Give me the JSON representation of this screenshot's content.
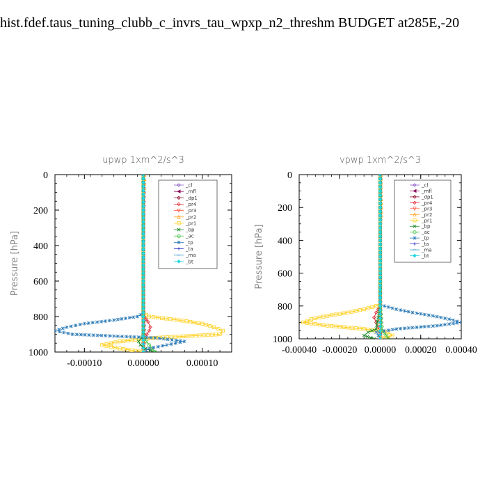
{
  "title": "hist.fdef.taus_tuning_clubb_c_invrs_tau_wpxp_n2_threshm  BUDGET at285E,-20",
  "chart_data": [
    {
      "type": "line",
      "title": "upwp   1xm^2/s^3",
      "ylabel": "Pressure  [hPa]",
      "xlabel": "",
      "xlim": [
        -0.00015,
        0.00015
      ],
      "ylim": [
        1000,
        0
      ],
      "xticks": [
        "-0.00010",
        "0.00000",
        "0.00010"
      ],
      "xtick_values": [
        -0.0001,
        0,
        0.0001
      ],
      "yticks": [
        "0",
        "200",
        "400",
        "600",
        "800",
        "1000"
      ],
      "ytick_values": [
        0,
        200,
        400,
        600,
        800,
        1000
      ],
      "legend_position": "top-right",
      "series": [
        {
          "name": "_cl",
          "color": "#8a5cc8",
          "marker": "diamond",
          "y": [
            0,
            100,
            200,
            300,
            400,
            500,
            600,
            700,
            800,
            850,
            900,
            950,
            1000
          ],
          "x": [
            1e-06,
            1.5e-06,
            1e-06,
            5e-07,
            5e-07,
            5e-07,
            5e-07,
            5e-07,
            1e-06,
            2e-06,
            1.5e-06,
            1e-06,
            0
          ]
        },
        {
          "name": "_mfl",
          "color": "#8b0a5a",
          "marker": "triangle-left",
          "y": [
            0,
            200,
            400,
            600,
            800,
            1000
          ],
          "x": [
            0,
            0,
            0,
            0,
            0,
            0
          ]
        },
        {
          "name": "_dp1",
          "color": "#8b0a2a",
          "marker": "diamond",
          "y": [
            0,
            200,
            400,
            600,
            800,
            1000
          ],
          "x": [
            0,
            0,
            0,
            0,
            0,
            0
          ]
        },
        {
          "name": "_pr4",
          "color": "#e0303a",
          "marker": "diamond",
          "y": [
            0,
            200,
            400,
            600,
            750,
            800,
            830,
            860,
            880,
            900,
            920,
            950,
            980,
            1000
          ],
          "x": [
            0,
            0,
            0,
            0,
            0,
            2e-06,
            8e-06,
            1.2e-05,
            1e-05,
            6e-06,
            3e-06,
            1e-06,
            0,
            0
          ]
        },
        {
          "name": "_pr3",
          "color": "#ff5a4a",
          "marker": "triangle-down",
          "y": [
            0,
            200,
            400,
            600,
            800,
            1000
          ],
          "x": [
            0,
            0,
            0,
            0,
            0,
            0
          ]
        },
        {
          "name": "_pr2",
          "color": "#ffa020",
          "marker": "triangle-up",
          "y": [
            0,
            100,
            200,
            300,
            400,
            600,
            800,
            1000
          ],
          "x": [
            2e-06,
            1e-06,
            0,
            0,
            0,
            0,
            0,
            0
          ]
        },
        {
          "name": "_pr1",
          "color": "#ffd020",
          "marker": "square",
          "y": [
            0,
            200,
            400,
            600,
            780,
            800,
            820,
            840,
            860,
            880,
            900,
            920,
            940,
            960,
            980,
            1000
          ],
          "x": [
            0,
            0,
            0,
            0,
            0,
            1e-05,
            6e-05,
            0.0001,
            0.00012,
            0.000135,
            0.00013,
            2e-05,
            -4e-05,
            -7e-05,
            -4e-05,
            0
          ]
        },
        {
          "name": "_bp",
          "color": "#1f8a2a",
          "marker": "x",
          "y": [
            0,
            200,
            400,
            600,
            800,
            900,
            920,
            940,
            960,
            980,
            1000
          ],
          "x": [
            0,
            0,
            0,
            0,
            0,
            0,
            -3e-06,
            -8e-06,
            -5e-06,
            4e-06,
            2e-05
          ]
        },
        {
          "name": "_ac",
          "color": "#40c040",
          "marker": "circle",
          "y": [
            0,
            200,
            400,
            600,
            800,
            900,
            940,
            960,
            980,
            1000
          ],
          "x": [
            0,
            0,
            0,
            0,
            0,
            0,
            5e-06,
            1e-05,
            1.5e-05,
            2e-05
          ]
        },
        {
          "name": "_tp",
          "color": "#2a7ab8",
          "marker": "star",
          "y": [
            0,
            200,
            400,
            600,
            780,
            800,
            820,
            840,
            860,
            880,
            900,
            920,
            940,
            960,
            980,
            1000
          ],
          "x": [
            0,
            0,
            0,
            0,
            0,
            -1e-05,
            -5e-05,
            -0.0001,
            -0.00013,
            -0.00015,
            -0.00012,
            2e-05,
            7e-05,
            4e-05,
            1e-05,
            0
          ]
        },
        {
          "name": "_ta",
          "color": "#3a3ad0",
          "marker": "plus",
          "y": [
            0,
            200,
            400,
            600,
            800,
            1000
          ],
          "x": [
            0,
            0,
            0,
            0,
            0,
            0
          ]
        },
        {
          "name": "_ma",
          "color": "#2a90c0",
          "marker": "dash",
          "y": [
            0,
            200,
            400,
            600,
            800,
            1000
          ],
          "x": [
            0,
            0,
            0,
            0,
            0,
            0
          ]
        },
        {
          "name": "_bt",
          "color": "#20d8e0",
          "marker": "diamond-filled",
          "y": [
            0,
            200,
            400,
            600,
            800,
            1000
          ],
          "x": [
            0,
            0,
            0,
            0,
            0,
            0
          ]
        }
      ]
    },
    {
      "type": "line",
      "title": "vpwp   1xm^2/s^3",
      "ylabel": "Pressure  [hPa]",
      "xlabel": "",
      "xlim": [
        -0.0004,
        0.0004
      ],
      "ylim": [
        1000,
        0
      ],
      "xticks": [
        "-0.00040",
        "-0.00020",
        "0.00000",
        "0.00020",
        "0.00040"
      ],
      "xtick_values": [
        -0.0004,
        -0.0002,
        0,
        0.0002,
        0.0004
      ],
      "yticks": [
        "0",
        "200",
        "400",
        "600",
        "800",
        "1000"
      ],
      "ytick_values": [
        0,
        200,
        400,
        600,
        800,
        1000
      ],
      "legend_position": "top-right",
      "series": [
        {
          "name": "_cl",
          "color": "#8a5cc8",
          "marker": "diamond",
          "y": [
            0,
            200,
            400,
            600,
            800,
            900,
            1000
          ],
          "x": [
            3e-06,
            2e-06,
            1e-06,
            1e-06,
            2e-06,
            3e-06,
            0
          ]
        },
        {
          "name": "_mfl",
          "color": "#8b0a5a",
          "marker": "triangle-left",
          "y": [
            0,
            200,
            400,
            600,
            800,
            1000
          ],
          "x": [
            0,
            0,
            0,
            0,
            0,
            0
          ]
        },
        {
          "name": "_dp1",
          "color": "#8b0a2a",
          "marker": "diamond",
          "y": [
            0,
            200,
            400,
            600,
            800,
            1000
          ],
          "x": [
            0,
            0,
            0,
            0,
            0,
            0
          ]
        },
        {
          "name": "_pr4",
          "color": "#e0303a",
          "marker": "diamond",
          "y": [
            0,
            200,
            400,
            600,
            800,
            840,
            870,
            900,
            930,
            960,
            1000
          ],
          "x": [
            0,
            0,
            0,
            0,
            0,
            -2e-05,
            -3e-05,
            -2e-05,
            -1e-05,
            0,
            0
          ]
        },
        {
          "name": "_pr3",
          "color": "#ff5a4a",
          "marker": "triangle-down",
          "y": [
            0,
            200,
            400,
            600,
            800,
            1000
          ],
          "x": [
            0,
            0,
            0,
            0,
            0,
            0
          ]
        },
        {
          "name": "_pr2",
          "color": "#ffa020",
          "marker": "triangle-up",
          "y": [
            0,
            100,
            200,
            250,
            300,
            400,
            600,
            800,
            1000
          ],
          "x": [
            5e-06,
            3e-06,
            6e-06,
            4e-06,
            0,
            0,
            0,
            0,
            0
          ]
        },
        {
          "name": "_pr1",
          "color": "#ffd020",
          "marker": "square",
          "y": [
            0,
            200,
            400,
            600,
            790,
            800,
            820,
            840,
            860,
            880,
            900,
            920,
            940,
            960,
            980,
            1000
          ],
          "x": [
            0,
            0,
            0,
            0,
            0,
            -2e-05,
            -8e-05,
            -0.00016,
            -0.00026,
            -0.00034,
            -0.00038,
            -0.00026,
            -8e-05,
            4e-05,
            6e-05,
            0
          ]
        },
        {
          "name": "_bp",
          "color": "#1f8a2a",
          "marker": "x",
          "y": [
            0,
            200,
            400,
            600,
            800,
            940,
            960,
            980,
            1000
          ],
          "x": [
            0,
            0,
            0,
            0,
            0,
            -2e-05,
            -6e-05,
            -8e-05,
            -3e-05
          ]
        },
        {
          "name": "_ac",
          "color": "#40c040",
          "marker": "circle",
          "y": [
            0,
            200,
            400,
            600,
            800,
            950,
            980,
            1000
          ],
          "x": [
            0,
            0,
            0,
            0,
            0,
            1e-05,
            3e-05,
            4e-05
          ]
        },
        {
          "name": "_tp",
          "color": "#2a7ab8",
          "marker": "star",
          "y": [
            0,
            200,
            400,
            600,
            790,
            800,
            820,
            840,
            860,
            880,
            900,
            920,
            940,
            960,
            980,
            1000
          ],
          "x": [
            0,
            0,
            0,
            0,
            0,
            2e-05,
            8e-05,
            0.00016,
            0.00026,
            0.00034,
            0.0004,
            0.00028,
            8e-05,
            -2e-05,
            -1e-05,
            0
          ]
        },
        {
          "name": "_ta",
          "color": "#3a3ad0",
          "marker": "plus",
          "y": [
            0,
            200,
            400,
            600,
            800,
            1000
          ],
          "x": [
            0,
            0,
            0,
            0,
            0,
            0
          ]
        },
        {
          "name": "_ma",
          "color": "#2a90c0",
          "marker": "dash",
          "y": [
            0,
            200,
            400,
            600,
            800,
            1000
          ],
          "x": [
            0,
            0,
            0,
            0,
            0,
            0
          ]
        },
        {
          "name": "_bt",
          "color": "#20d8e0",
          "marker": "diamond-filled",
          "y": [
            0,
            200,
            400,
            600,
            800,
            1000
          ],
          "x": [
            0,
            0,
            0,
            0,
            0,
            0
          ]
        }
      ]
    }
  ]
}
